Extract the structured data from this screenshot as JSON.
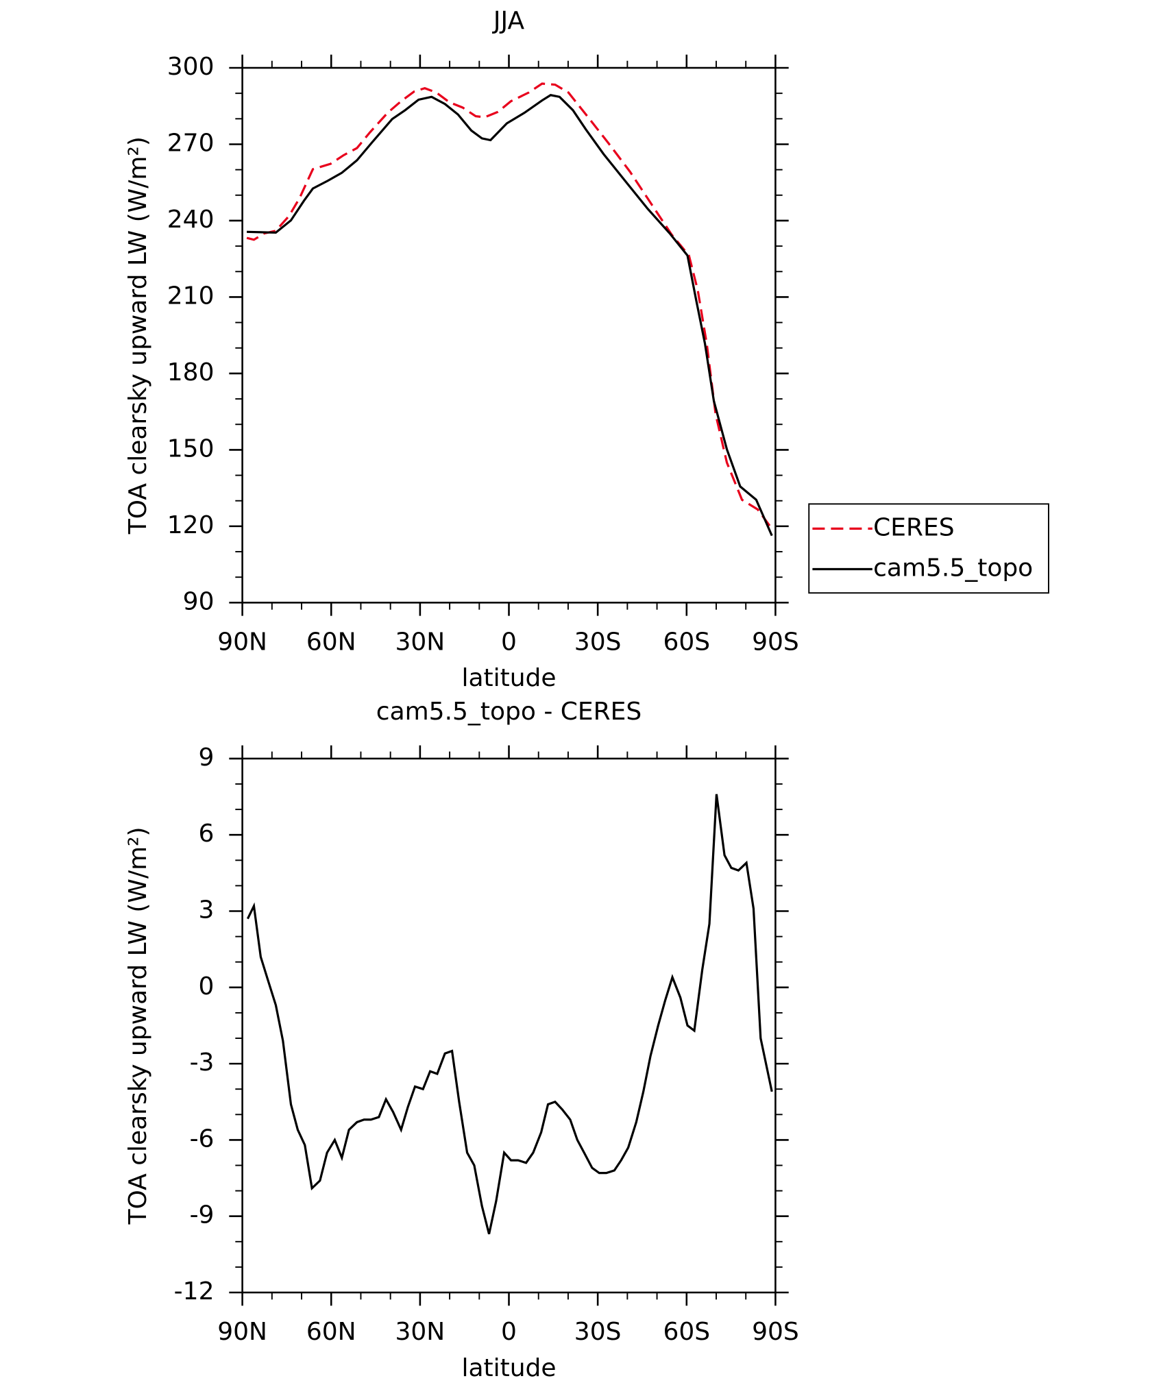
{
  "chart_data": [
    {
      "type": "line",
      "title": "JJA",
      "x_label": "latitude",
      "y_label": "TOA clearsky upward LW (W/m²)",
      "xlim": [
        90,
        -90
      ],
      "xticks": [
        {
          "value": 90,
          "label": "90N"
        },
        {
          "value": 60,
          "label": "60N"
        },
        {
          "value": 30,
          "label": "30N"
        },
        0,
        {
          "value": -30,
          "label": "30S"
        },
        {
          "value": -60,
          "label": "60S"
        },
        {
          "value": -90,
          "label": "90S"
        }
      ],
      "ylim": [
        90,
        300
      ],
      "yticks": [
        90,
        120,
        150,
        180,
        210,
        240,
        270,
        300
      ],
      "legend": "right",
      "series": [
        {
          "name": "CERES",
          "color": "#e8001c",
          "style": "dashed",
          "x": [
            88.5,
            86.1,
            82.6,
            78.7,
            74.2,
            70.7,
            66.2,
            60.2,
            55.8,
            51.3,
            46.9,
            40.9,
            36.4,
            32,
            28.4,
            24.5,
            20.1,
            15.6,
            11.2,
            8.2,
            3.7,
            -0.7,
            -6.7,
            -11.2,
            -15.6,
            -20.1,
            -26,
            -33.5,
            -40.9,
            -48.4,
            -54.9,
            -60.8,
            -63.8,
            -66.8,
            -69.8,
            -73.6,
            -78.7,
            -84,
            -88.8
          ],
          "values": [
            233.2,
            232.5,
            235,
            236,
            241.9,
            248.8,
            260.2,
            262.3,
            265.7,
            268.5,
            274.7,
            282.4,
            286.9,
            290.7,
            292,
            290.3,
            286.5,
            284.4,
            281,
            280.6,
            282.7,
            286.9,
            290.3,
            293.8,
            293.4,
            290.3,
            281.7,
            270.6,
            259.2,
            246,
            234.6,
            226.3,
            212.5,
            191.7,
            164,
            145,
            130.4,
            126.6,
            119
          ]
        },
        {
          "name": "cam5.5_topo",
          "color": "#000000",
          "style": "solid",
          "x": [
            88.5,
            78.7,
            73.6,
            69.2,
            66.2,
            61.1,
            56.4,
            51.3,
            46.3,
            39.4,
            35,
            30.5,
            26.1,
            21.6,
            17.2,
            12.7,
            9.1,
            6.2,
            0.7,
            -5.3,
            -11.2,
            -14.1,
            -17.1,
            -21.6,
            -26,
            -32,
            -39.4,
            -46.9,
            -54.3,
            -60.3,
            -63.2,
            -66.2,
            -69.2,
            -73.6,
            -78.1,
            -83.5,
            -88.8
          ],
          "values": [
            235.6,
            235.3,
            240.1,
            247.8,
            252.6,
            255.7,
            258.8,
            263.7,
            270.6,
            279.9,
            283.4,
            287.5,
            288.6,
            285.8,
            281.7,
            275.4,
            272.3,
            271.6,
            278.2,
            282.4,
            287.2,
            289.3,
            288.6,
            283.4,
            275.8,
            266.1,
            255.4,
            244.6,
            235,
            226.3,
            209,
            191.7,
            169.2,
            150.2,
            135.6,
            130.4,
            116.3
          ]
        }
      ]
    },
    {
      "type": "line",
      "title": "cam5.5_topo - CERES",
      "x_label": "latitude",
      "y_label": "TOA clearsky upward LW (W/m²)",
      "xlim": [
        90,
        -90
      ],
      "xticks": [
        {
          "value": 90,
          "label": "90N"
        },
        {
          "value": 60,
          "label": "60N"
        },
        {
          "value": 30,
          "label": "30N"
        },
        0,
        {
          "value": -30,
          "label": "30S"
        },
        {
          "value": -60,
          "label": "60S"
        },
        {
          "value": -90,
          "label": "90S"
        }
      ],
      "ylim": [
        -12,
        9
      ],
      "yticks": [
        -12,
        -9,
        -6,
        -3,
        0,
        3,
        6,
        9
      ],
      "series": [
        {
          "color": "#000000",
          "style": "solid",
          "x": [
            88.2,
            86.1,
            83.8,
            81.4,
            78.7,
            76.3,
            73.6,
            71.3,
            68.9,
            66.5,
            63.8,
            61.4,
            58.8,
            56.4,
            54,
            51.3,
            48.9,
            46.6,
            43.9,
            41.5,
            39.1,
            36.4,
            34.1,
            31.7,
            29,
            26.6,
            24.2,
            21.6,
            19.2,
            16.8,
            14.1,
            11.7,
            9.1,
            6.7,
            4.3,
            1.6,
            -0.7,
            -3.1,
            -5.8,
            -8.2,
            -10.9,
            -13.2,
            -15.6,
            -18,
            -20.7,
            -23.1,
            -25.4,
            -28.1,
            -30.5,
            -32.9,
            -35.6,
            -37.9,
            -40.3,
            -43,
            -45.4,
            -47.8,
            -50.4,
            -52.8,
            -55.2,
            -57.9,
            -60.3,
            -62.6,
            -65.3,
            -67.7,
            -70.1,
            -72.8,
            -75.1,
            -77.5,
            -80.2,
            -82.6,
            -85,
            -88.8
          ],
          "values": [
            2.7,
            3.2,
            1.2,
            0.3,
            -0.7,
            -2.1,
            -4.6,
            -5.6,
            -6.2,
            -7.9,
            -7.6,
            -6.5,
            -6,
            -6.7,
            -5.6,
            -5.3,
            -5.2,
            -5.2,
            -5.1,
            -4.4,
            -4.9,
            -5.6,
            -4.7,
            -3.9,
            -4,
            -3.3,
            -3.4,
            -2.6,
            -2.5,
            -4.5,
            -6.5,
            -7,
            -8.6,
            -9.7,
            -8.4,
            -6.5,
            -6.8,
            -6.8,
            -6.9,
            -6.5,
            -5.7,
            -4.6,
            -4.5,
            -4.8,
            -5.2,
            -6,
            -6.5,
            -7.1,
            -7.3,
            -7.3,
            -7.2,
            -6.8,
            -6.3,
            -5.3,
            -4.1,
            -2.7,
            -1.5,
            -0.5,
            0.4,
            -0.4,
            -1.5,
            -1.7,
            0.7,
            2.5,
            7.6,
            5.2,
            4.7,
            4.6,
            4.9,
            3.1,
            -2,
            -4.1
          ]
        }
      ]
    }
  ]
}
